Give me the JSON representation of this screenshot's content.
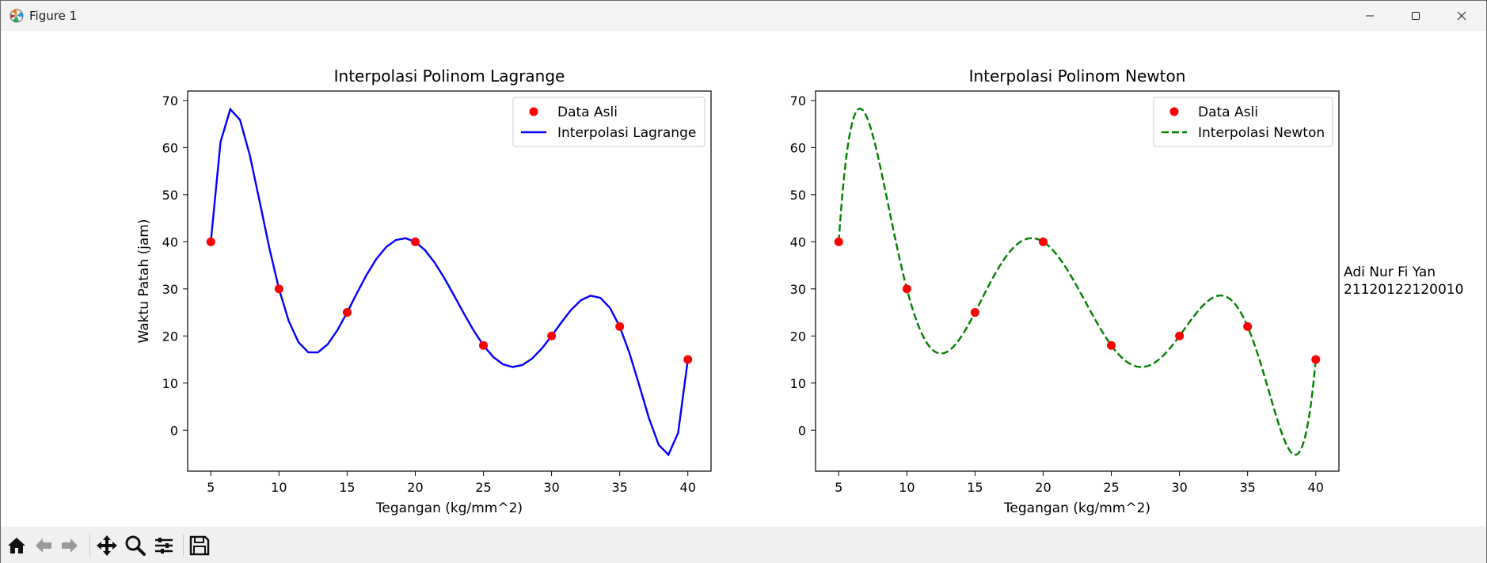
{
  "window": {
    "title": "Figure 1"
  },
  "figure": {
    "side_text": [
      "Adi Nur Fi Yan",
      "21120122120010"
    ]
  },
  "chart_data": [
    {
      "type": "line",
      "title": "Interpolasi Polinom Lagrange",
      "xlabel": "Tegangan (kg/mm^2)",
      "ylabel": "Waktu Patah (jam)",
      "xlim": [
        3.3,
        41.7
      ],
      "ylim": [
        -8.7,
        72
      ],
      "xticks": [
        5,
        10,
        15,
        20,
        25,
        30,
        35,
        40
      ],
      "yticks": [
        0,
        10,
        20,
        30,
        40,
        50,
        60,
        70
      ],
      "legend_position": "upper right",
      "series": [
        {
          "name": "Data Asli",
          "kind": "scatter",
          "color": "#ff0000",
          "x": [
            5,
            10,
            15,
            20,
            25,
            30,
            35,
            40
          ],
          "y": [
            40,
            30,
            25,
            40,
            18,
            20,
            22,
            15
          ]
        },
        {
          "name": "Interpolasi Lagrange",
          "kind": "line",
          "style": "solid",
          "color": "#0000ff",
          "sample_count": 50
        }
      ]
    },
    {
      "type": "line",
      "title": "Interpolasi Polinom Newton",
      "xlabel": "Tegangan (kg/mm^2)",
      "ylabel": "",
      "xlim": [
        3.3,
        41.7
      ],
      "ylim": [
        -8.7,
        72
      ],
      "xticks": [
        5,
        10,
        15,
        20,
        25,
        30,
        35,
        40
      ],
      "yticks": [
        0,
        10,
        20,
        30,
        40,
        50,
        60,
        70
      ],
      "legend_position": "upper right",
      "series": [
        {
          "name": "Data Asli",
          "kind": "scatter",
          "color": "#ff0000",
          "x": [
            5,
            10,
            15,
            20,
            25,
            30,
            35,
            40
          ],
          "y": [
            40,
            30,
            25,
            40,
            18,
            20,
            22,
            15
          ]
        },
        {
          "name": "Interpolasi Newton",
          "kind": "line",
          "style": "dashed",
          "color": "#008000",
          "sample_count": 400
        }
      ]
    }
  ],
  "toolbar": {
    "icons": [
      "home-icon",
      "back-icon",
      "forward-icon",
      "pan-icon",
      "zoom-icon",
      "configure-icon",
      "save-icon"
    ]
  }
}
